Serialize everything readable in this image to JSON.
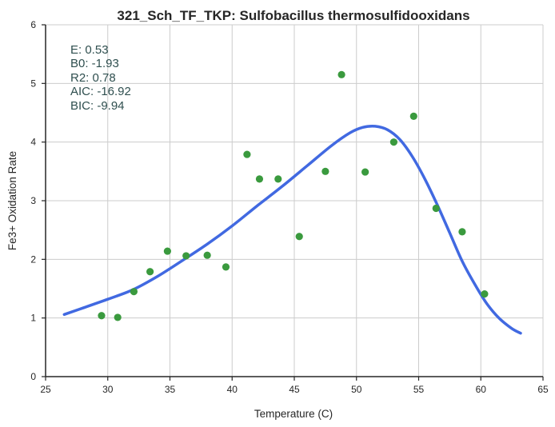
{
  "chart_data": {
    "type": "scatter",
    "title": "321_Sch_TF_TKP: Sulfobacillus thermosulfidooxidans",
    "xlabel": "Temperature (C)",
    "ylabel": "Fe3+ Oxidation Rate",
    "xlim": [
      25,
      65
    ],
    "ylim": [
      0,
      6
    ],
    "xticks": [
      "25",
      "30",
      "35",
      "40",
      "45",
      "50",
      "55",
      "60",
      "65"
    ],
    "yticks": [
      "0",
      "1",
      "2",
      "3",
      "4",
      "5",
      "6"
    ],
    "grid": true,
    "point_color": "#3a9a3e",
    "curve_color": "#4169e1",
    "stats": {
      "e": "E:  0.53",
      "b0": "B0:  -1.93",
      "r2": "R2:  0.78",
      "aic": "AIC: -16.92",
      "bic": "BIC: -9.94"
    },
    "points": [
      {
        "x": 29.5,
        "y": 1.04
      },
      {
        "x": 30.8,
        "y": 1.01
      },
      {
        "x": 32.1,
        "y": 1.45
      },
      {
        "x": 33.4,
        "y": 1.79
      },
      {
        "x": 34.8,
        "y": 2.14
      },
      {
        "x": 36.3,
        "y": 2.06
      },
      {
        "x": 38.0,
        "y": 2.07
      },
      {
        "x": 39.5,
        "y": 1.87
      },
      {
        "x": 41.2,
        "y": 3.79
      },
      {
        "x": 42.2,
        "y": 3.37
      },
      {
        "x": 43.7,
        "y": 3.37
      },
      {
        "x": 45.4,
        "y": 2.39
      },
      {
        "x": 47.5,
        "y": 3.5
      },
      {
        "x": 48.8,
        "y": 5.15
      },
      {
        "x": 50.7,
        "y": 3.49
      },
      {
        "x": 53.0,
        "y": 4.0
      },
      {
        "x": 54.6,
        "y": 4.44
      },
      {
        "x": 56.4,
        "y": 2.87
      },
      {
        "x": 58.5,
        "y": 2.47
      },
      {
        "x": 60.3,
        "y": 1.41
      }
    ],
    "fit_curve": [
      {
        "x": 26.5,
        "y": 1.06
      },
      {
        "x": 28.0,
        "y": 1.17
      },
      {
        "x": 30.0,
        "y": 1.32
      },
      {
        "x": 32.0,
        "y": 1.48
      },
      {
        "x": 34.0,
        "y": 1.71
      },
      {
        "x": 36.0,
        "y": 1.98
      },
      {
        "x": 38.0,
        "y": 2.26
      },
      {
        "x": 40.0,
        "y": 2.57
      },
      {
        "x": 42.0,
        "y": 2.91
      },
      {
        "x": 44.0,
        "y": 3.24
      },
      {
        "x": 46.0,
        "y": 3.59
      },
      {
        "x": 48.0,
        "y": 3.94
      },
      {
        "x": 49.5,
        "y": 4.16
      },
      {
        "x": 50.5,
        "y": 4.25
      },
      {
        "x": 51.5,
        "y": 4.27
      },
      {
        "x": 52.5,
        "y": 4.21
      },
      {
        "x": 53.5,
        "y": 4.04
      },
      {
        "x": 54.5,
        "y": 3.75
      },
      {
        "x": 55.5,
        "y": 3.37
      },
      {
        "x": 56.5,
        "y": 2.93
      },
      {
        "x": 57.5,
        "y": 2.45
      },
      {
        "x": 58.5,
        "y": 1.97
      },
      {
        "x": 59.5,
        "y": 1.58
      },
      {
        "x": 60.5,
        "y": 1.24
      },
      {
        "x": 61.5,
        "y": 0.99
      },
      {
        "x": 62.5,
        "y": 0.82
      },
      {
        "x": 63.2,
        "y": 0.74
      }
    ]
  }
}
